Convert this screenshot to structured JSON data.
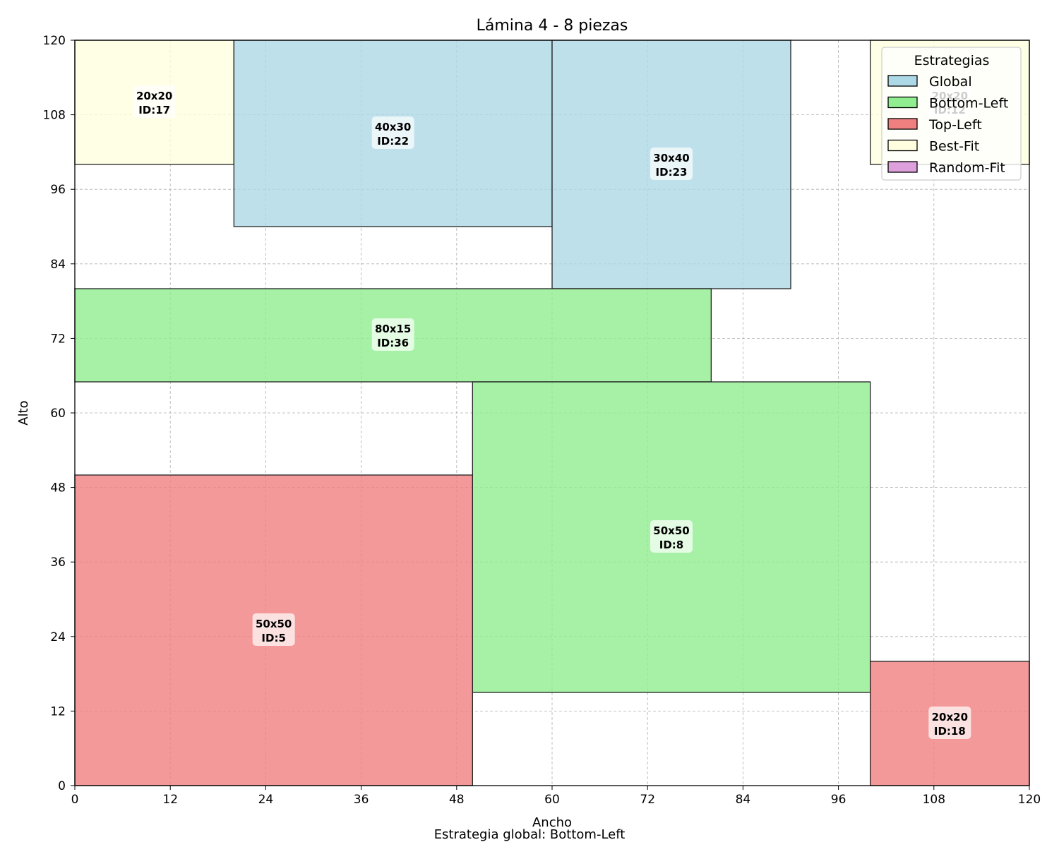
{
  "chart_data": {
    "type": "rectangle-packing",
    "title": "Lámina 4 - 8 piezas",
    "xlabel": "Ancho",
    "ylabel": "Alto",
    "footer": "Estrategia global: Bottom-Left",
    "xlim": [
      0,
      120
    ],
    "ylim": [
      0,
      120
    ],
    "xticks": [
      0,
      12,
      24,
      36,
      48,
      60,
      72,
      84,
      96,
      108,
      120
    ],
    "yticks": [
      0,
      12,
      24,
      36,
      48,
      60,
      72,
      84,
      96,
      108,
      120
    ],
    "grid": true,
    "legend": {
      "title": "Estrategias",
      "placement": "top-right",
      "entries": [
        {
          "name": "Global",
          "color": "#add8e6"
        },
        {
          "name": "Bottom-Left",
          "color": "#90ee90"
        },
        {
          "name": "Top-Left",
          "color": "#f08080"
        },
        {
          "name": "Best-Fit",
          "color": "#ffffe0"
        },
        {
          "name": "Random-Fit",
          "color": "#dda0dd"
        }
      ]
    },
    "pieces": [
      {
        "id": "17",
        "x": 0,
        "y": 100,
        "w": 20,
        "h": 20,
        "size": "20x20",
        "label": "ID:17",
        "strategy": "Best-Fit"
      },
      {
        "id": "22",
        "x": 20,
        "y": 90,
        "w": 40,
        "h": 30,
        "size": "40x30",
        "label": "ID:22",
        "strategy": "Global"
      },
      {
        "id": "23",
        "x": 60,
        "y": 80,
        "w": 30,
        "h": 40,
        "size": "30x40",
        "label": "ID:23",
        "strategy": "Global"
      },
      {
        "id": "12",
        "x": 100,
        "y": 100,
        "w": 20,
        "h": 20,
        "size": "20x20",
        "label": "ID:12",
        "strategy": "Best-Fit"
      },
      {
        "id": "36",
        "x": 0,
        "y": 65,
        "w": 80,
        "h": 15,
        "size": "80x15",
        "label": "ID:36",
        "strategy": "Bottom-Left"
      },
      {
        "id": "8",
        "x": 50,
        "y": 15,
        "w": 50,
        "h": 50,
        "size": "50x50",
        "label": "ID:8",
        "strategy": "Bottom-Left"
      },
      {
        "id": "5",
        "x": 0,
        "y": 0,
        "w": 50,
        "h": 50,
        "size": "50x50",
        "label": "ID:5",
        "strategy": "Top-Left"
      },
      {
        "id": "18",
        "x": 100,
        "y": 0,
        "w": 20,
        "h": 20,
        "size": "20x20",
        "label": "ID:18",
        "strategy": "Top-Left"
      }
    ]
  }
}
